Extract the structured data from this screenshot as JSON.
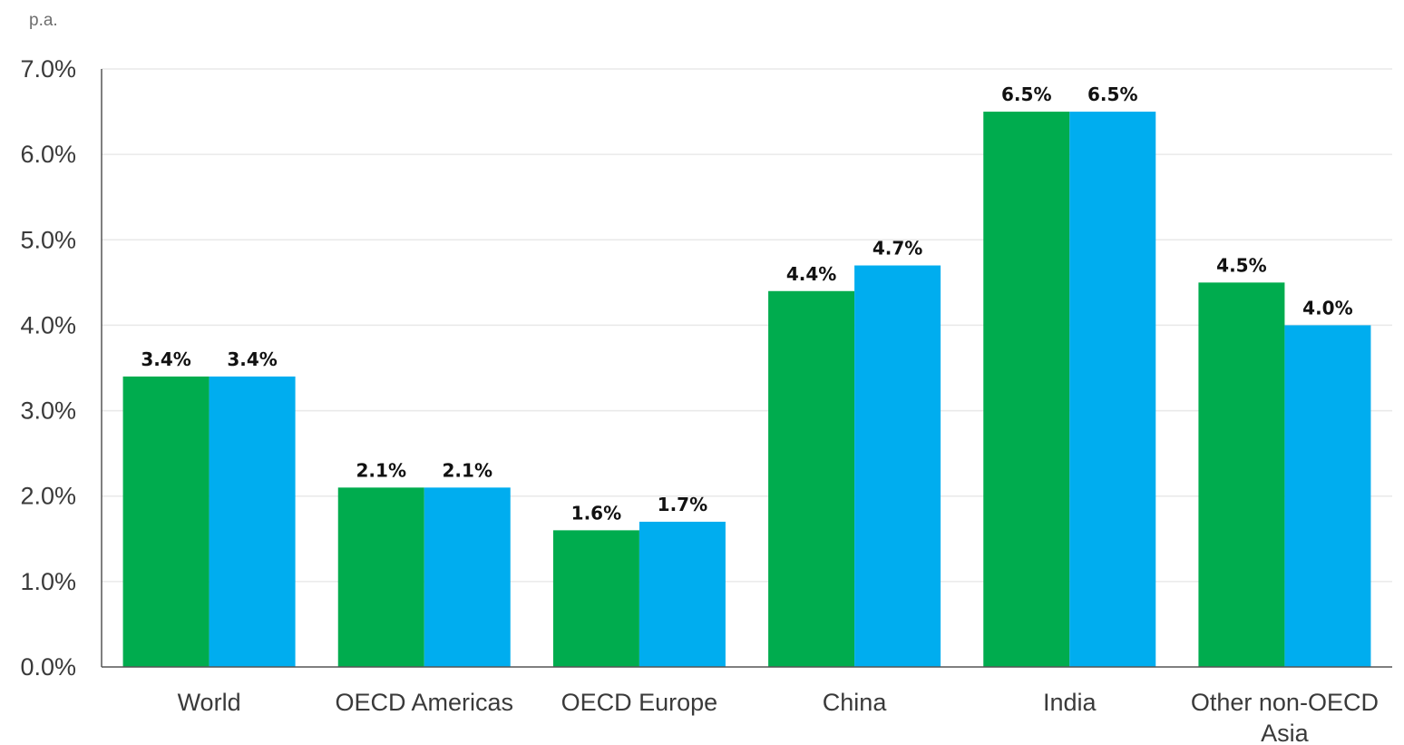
{
  "chart_data": {
    "type": "bar",
    "unit_label": "p.a.",
    "categories": [
      "World",
      "OECD Americas",
      "OECD Europe",
      "China",
      "India",
      "Other non-OECD Asia"
    ],
    "series": [
      {
        "values": [
          3.4,
          2.1,
          1.6,
          4.4,
          6.5,
          4.5
        ],
        "color": "#00ac4e"
      },
      {
        "values": [
          3.4,
          2.1,
          1.7,
          4.7,
          6.5,
          4.0
        ],
        "color": "#00adef"
      }
    ],
    "value_labels": [
      [
        "3.4%",
        "2.1%",
        "1.6%",
        "4.4%",
        "6.5%",
        "4.5%"
      ],
      [
        "3.4%",
        "2.1%",
        "1.7%",
        "4.7%",
        "6.5%",
        "4.0%"
      ]
    ],
    "yticks": [
      "0.0%",
      "1.0%",
      "2.0%",
      "3.0%",
      "4.0%",
      "5.0%",
      "6.0%",
      "7.0%"
    ],
    "ylim": [
      0,
      7
    ],
    "grid": true,
    "legend": "none"
  }
}
